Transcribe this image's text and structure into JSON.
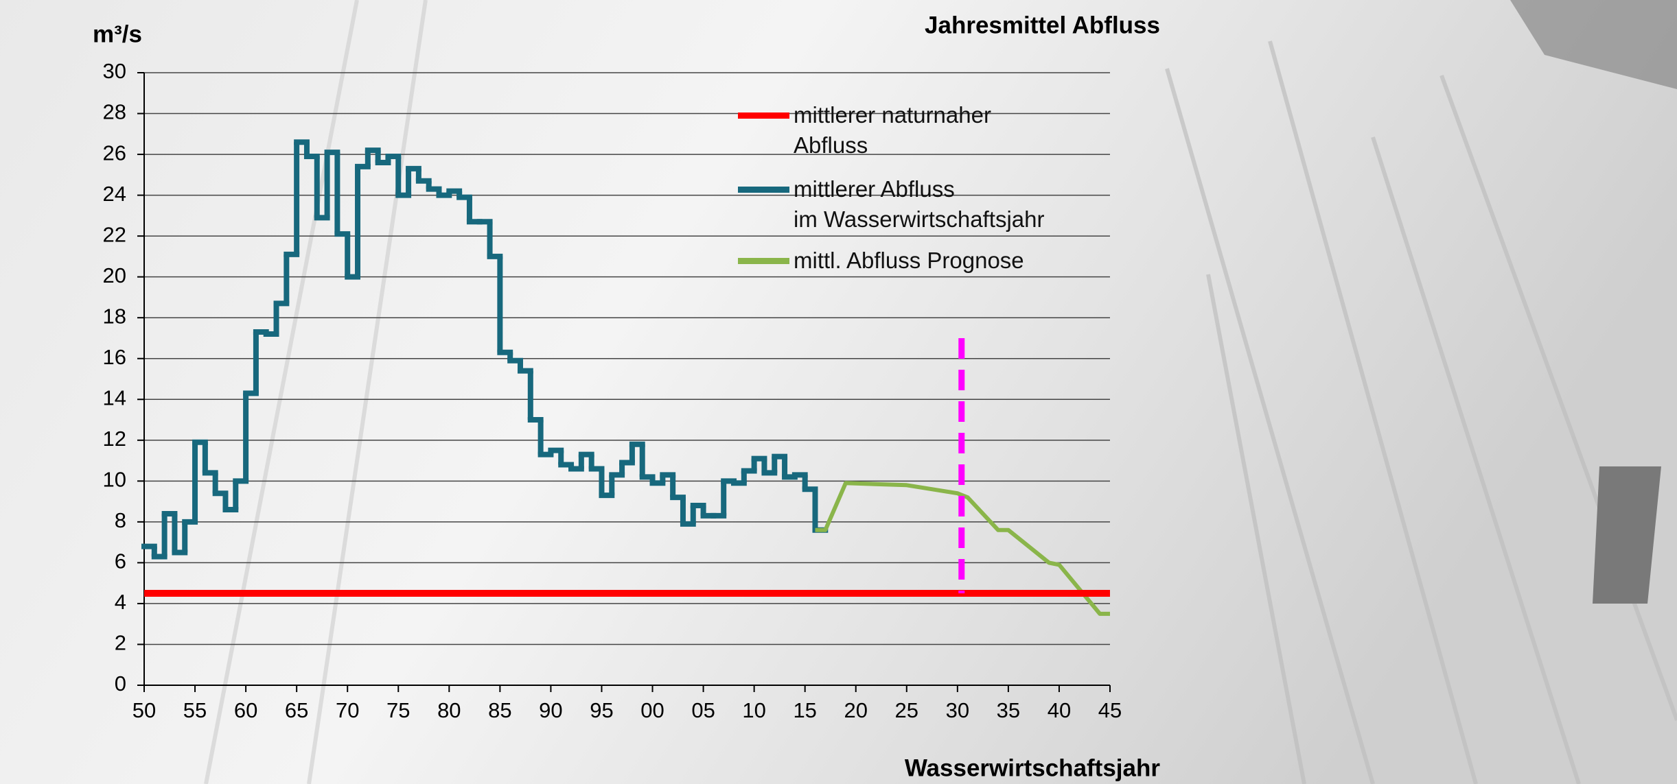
{
  "chart_data": {
    "type": "line",
    "title": "Jahresmittel Abfluss",
    "y_label": "m³/s",
    "x_label": "Wasserwirtschaftsjahr",
    "xlim": [
      1950,
      2045
    ],
    "xticks": [
      {
        "value": 1950,
        "label": "50"
      },
      {
        "value": 1955,
        "label": "55"
      },
      {
        "value": 1960,
        "label": "60"
      },
      {
        "value": 1965,
        "label": "65"
      },
      {
        "value": 1970,
        "label": "70"
      },
      {
        "value": 1975,
        "label": "75"
      },
      {
        "value": 1980,
        "label": "80"
      },
      {
        "value": 1985,
        "label": "85"
      },
      {
        "value": 1990,
        "label": "90"
      },
      {
        "value": 1995,
        "label": "95"
      },
      {
        "value": 2000,
        "label": "00"
      },
      {
        "value": 2005,
        "label": "05"
      },
      {
        "value": 2010,
        "label": "10"
      },
      {
        "value": 2015,
        "label": "15"
      },
      {
        "value": 2020,
        "label": "20"
      },
      {
        "value": 2025,
        "label": "25"
      },
      {
        "value": 2030,
        "label": "30"
      },
      {
        "value": 2035,
        "label": "35"
      },
      {
        "value": 2040,
        "label": "40"
      },
      {
        "value": 2045,
        "label": "45"
      }
    ],
    "ylim": [
      0,
      30
    ],
    "yticks": [
      0,
      2,
      4,
      6,
      8,
      10,
      12,
      14,
      16,
      18,
      20,
      22,
      24,
      26,
      28,
      30
    ],
    "grid": true,
    "series": [
      {
        "name": "mittlerer naturnaher\nAbfluss",
        "color": "#ff0000",
        "x": [
          1950,
          2045
        ],
        "values": [
          4.5,
          4.5
        ]
      },
      {
        "name": "mittlerer Abfluss\nim Wasserwirtschaftsjahr",
        "color": "#17687d",
        "step": true,
        "x": [
          1950,
          1951,
          1952,
          1953,
          1954,
          1955,
          1956,
          1957,
          1958,
          1959,
          1960,
          1961,
          1962,
          1963,
          1964,
          1965,
          1966,
          1967,
          1968,
          1969,
          1970,
          1971,
          1972,
          1973,
          1974,
          1975,
          1976,
          1977,
          1978,
          1979,
          1980,
          1981,
          1982,
          1983,
          1984,
          1985,
          1986,
          1987,
          1988,
          1989,
          1990,
          1991,
          1992,
          1993,
          1994,
          1995,
          1996,
          1997,
          1998,
          1999,
          2000,
          2001,
          2002,
          2003,
          2004,
          2005,
          2006,
          2007,
          2008,
          2009,
          2010,
          2011,
          2012,
          2013,
          2014,
          2015,
          2016
        ],
        "values": [
          6.8,
          6.3,
          8.4,
          6.5,
          8.0,
          11.9,
          10.4,
          9.4,
          8.6,
          10.0,
          14.3,
          17.3,
          17.2,
          18.7,
          21.1,
          26.6,
          25.9,
          22.9,
          26.1,
          22.1,
          20.0,
          25.4,
          26.2,
          25.6,
          25.9,
          24.0,
          25.3,
          24.7,
          24.3,
          24.0,
          24.2,
          23.9,
          22.7,
          22.7,
          21.0,
          16.3,
          15.9,
          15.4,
          13.0,
          11.3,
          11.5,
          10.8,
          10.6,
          11.3,
          10.6,
          9.3,
          10.3,
          10.9,
          11.8,
          10.2,
          9.9,
          10.3,
          9.2,
          7.9,
          8.8,
          8.3,
          8.3,
          10.0,
          9.9,
          10.5,
          11.1,
          10.4,
          11.2,
          10.2,
          10.3,
          9.6,
          7.6
        ]
      },
      {
        "name": "mittl. Abfluss Prognose",
        "color": "#8ab54a",
        "x": [
          2016,
          2017,
          2019,
          2025,
          2030,
          2031,
          2034,
          2035,
          2039,
          2040,
          2044,
          2045
        ],
        "values": [
          7.6,
          7.6,
          9.9,
          9.8,
          9.4,
          9.2,
          7.6,
          7.6,
          6.0,
          5.9,
          3.5,
          3.5
        ]
      }
    ],
    "vline": {
      "x": 2030.4,
      "y": [
        4.5,
        17
      ],
      "color": "#ff00ff"
    }
  }
}
